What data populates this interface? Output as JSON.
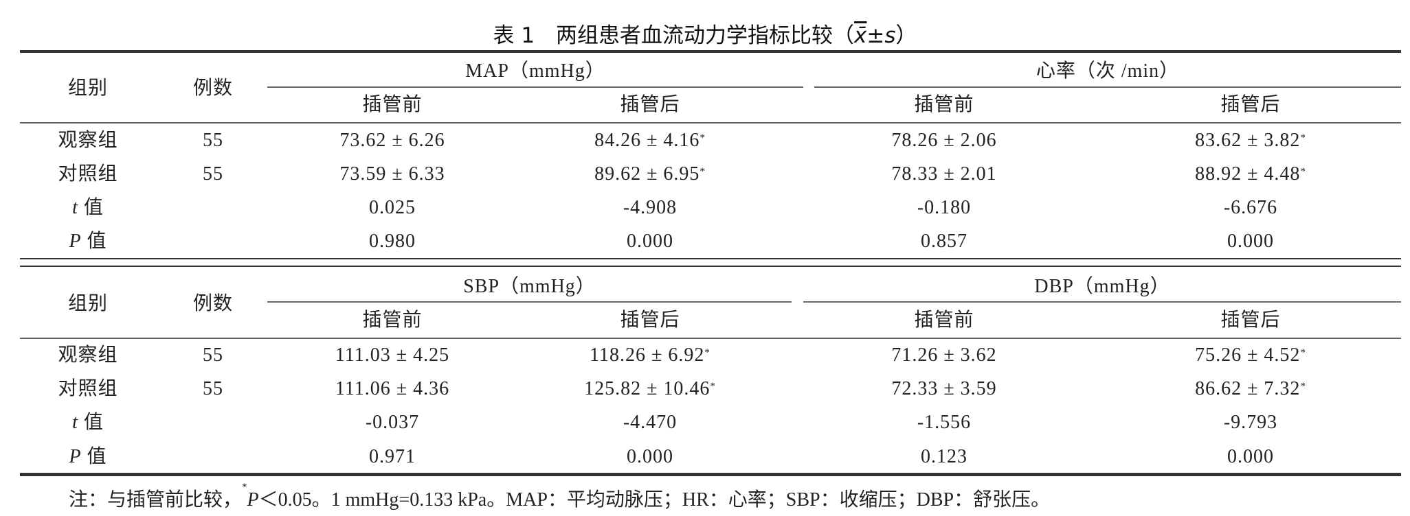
{
  "title": {
    "prefix": "表 1　两组患者血流动力学指标比较（",
    "x": "x̄",
    "pm": "±",
    "s": "s",
    "suffix": "）"
  },
  "col_group": "组别",
  "col_n": "例数",
  "sub_before": "插管前",
  "sub_after": "插管后",
  "tables": [
    {
      "metric1": "MAP（mmHg）",
      "metric2": "心率（次 /min）",
      "rows": [
        {
          "label": "观察组",
          "n": "55",
          "c1": "73.62 ± 6.26",
          "c2": "84.26 ± 4.16",
          "c2_mark": "*",
          "c3": "78.26 ± 2.06",
          "c4": "83.62 ± 3.82",
          "c4_mark": "*"
        },
        {
          "label": "对照组",
          "n": "55",
          "c1": "73.59 ± 6.33",
          "c2": "89.62 ± 6.95",
          "c2_mark": "*",
          "c3": "78.33 ± 2.01",
          "c4": "88.92 ± 4.48",
          "c4_mark": "*"
        },
        {
          "label_i": "t",
          "label": "值",
          "n": "",
          "c1": "0.025",
          "c2": "-4.908",
          "c3": "-0.180",
          "c4": "-6.676"
        },
        {
          "label_i": "P",
          "label": "值",
          "n": "",
          "c1": "0.980",
          "c2": "0.000",
          "c3": "0.857",
          "c4": "0.000"
        }
      ]
    },
    {
      "metric1": "SBP（mmHg）",
      "metric2": "DBP（mmHg）",
      "rows": [
        {
          "label": "观察组",
          "n": "55",
          "c1": "111.03 ± 4.25",
          "c2": "118.26 ± 6.92",
          "c2_mark": "*",
          "c3": "71.26 ± 3.62",
          "c4": "75.26 ± 4.52",
          "c4_mark": "*"
        },
        {
          "label": "对照组",
          "n": "55",
          "c1": "111.06 ± 4.36",
          "c2": "125.82 ± 10.46",
          "c2_mark": "*",
          "c3": "72.33 ± 3.59",
          "c4": "86.62 ± 7.32",
          "c4_mark": "*"
        },
        {
          "label_i": "t",
          "label": "值",
          "n": "",
          "c1": "-0.037",
          "c2": "-4.470",
          "c3": "-1.556",
          "c4": "-9.793"
        },
        {
          "label_i": "P",
          "label": "值",
          "n": "",
          "c1": "0.971",
          "c2": "0.000",
          "c3": "0.123",
          "c4": "0.000"
        }
      ]
    }
  ],
  "note": {
    "prefix": "注：与插管前比较，",
    "mark": "*",
    "p": "P",
    "text": "＜0.05。1 mmHg=0.133 kPa。MAP：平均动脉压；HR：心率；SBP：收缩压；DBP：舒张压。"
  }
}
